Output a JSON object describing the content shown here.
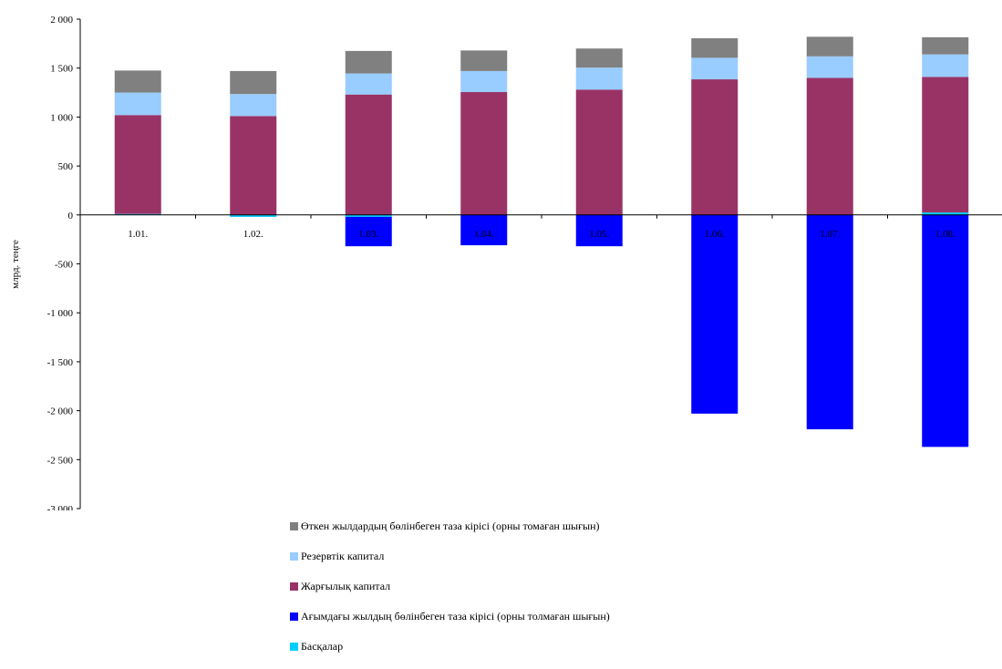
{
  "chart_data": {
    "type": "bar",
    "stacked": true,
    "ylabel": "млрд. теңге",
    "ylim": [
      -3000,
      2000
    ],
    "yticks": [
      2000,
      1500,
      1000,
      500,
      0,
      -500,
      -1000,
      -1500,
      -2000,
      -2500,
      -3000
    ],
    "ytick_labels": [
      "2 000",
      "1 500",
      "1 000",
      "500",
      "0",
      "-500",
      "-1 000",
      "-1 500",
      "-2 000",
      "-2 500",
      "-3 000"
    ],
    "categories": [
      "1.01.",
      "1.02.",
      "1.03.",
      "1.04.",
      "1.05.",
      "1.06.",
      "1.07.",
      "1.08."
    ],
    "series": [
      {
        "name": "Басқалар",
        "color": "#00CCFF",
        "values": [
          10,
          -20,
          -20,
          0,
          0,
          0,
          0,
          25
        ]
      },
      {
        "name": "Ағымдағы жылдың бөлінбеген таза кірісі (орны толмаған шығын)",
        "color": "#0000FF",
        "values": [
          0,
          0,
          -300,
          -310,
          -320,
          -2030,
          -2190,
          -2370
        ]
      },
      {
        "name": "Жарғылық капитал",
        "color": "#993366",
        "values": [
          1010,
          1010,
          1230,
          1255,
          1280,
          1385,
          1400,
          1385
        ]
      },
      {
        "name": "Резервтік капитал",
        "color": "#99CCFF",
        "values": [
          230,
          225,
          215,
          215,
          225,
          220,
          220,
          230
        ]
      },
      {
        "name": "Өткен жылдардың бөлінбеген таза кірісі (орны томаған шығын)",
        "color": "#808080",
        "values": [
          225,
          235,
          230,
          210,
          195,
          200,
          200,
          175
        ]
      }
    ],
    "legend_position": "bottom",
    "grid": false
  },
  "legend": [
    {
      "label": "Өткен жылдардың бөлінбеген таза кірісі (орны томаған шығын)",
      "color": "#808080"
    },
    {
      "label": "Резервтік капитал",
      "color": "#99CCFF"
    },
    {
      "label": "Жарғылық капитал",
      "color": "#993366"
    },
    {
      "label": "Ағымдағы жылдың бөлінбеген таза кірісі (орны толмаған шығын)",
      "color": "#0000FF"
    },
    {
      "label": "Басқалар",
      "color": "#00CCFF"
    }
  ]
}
